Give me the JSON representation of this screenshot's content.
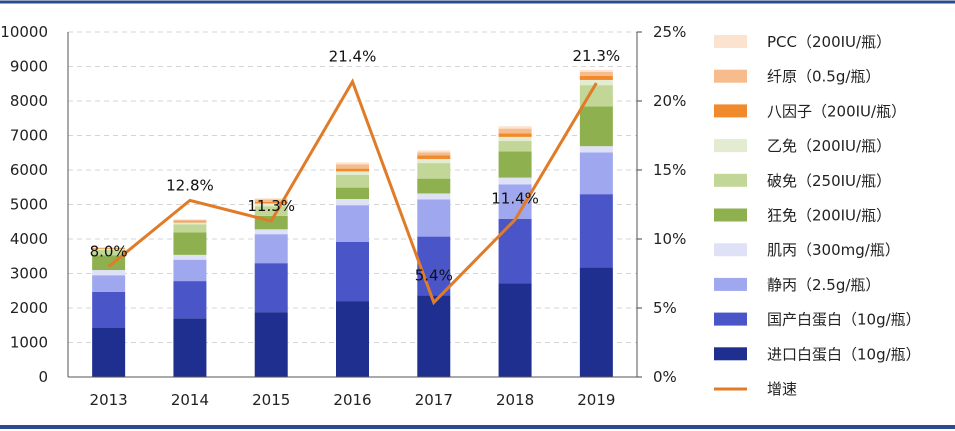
{
  "chart_data": {
    "type": "bar",
    "stacked": true,
    "categories": [
      "2013",
      "2014",
      "2015",
      "2016",
      "2017",
      "2018",
      "2019"
    ],
    "series": [
      {
        "name": "进口白蛋白（10g/瓶）",
        "color": "#1f2f8f",
        "values": [
          1420,
          1700,
          1880,
          2200,
          2370,
          2720,
          3180
        ]
      },
      {
        "name": "国产白蛋白（10g/瓶）",
        "color": "#4a55c8",
        "values": [
          1050,
          1080,
          1420,
          1720,
          1700,
          1860,
          2120
        ]
      },
      {
        "name": "静丙（2.5g/瓶）",
        "color": "#9fa7ee",
        "values": [
          480,
          620,
          840,
          1060,
          1080,
          1000,
          1210
        ]
      },
      {
        "name": "肌丙（300mg/瓶）",
        "color": "#dfe2f7",
        "values": [
          150,
          140,
          140,
          180,
          170,
          200,
          180
        ]
      },
      {
        "name": "狂免（200IU/瓶）",
        "color": "#8fb04f",
        "values": [
          430,
          650,
          390,
          330,
          430,
          760,
          1150
        ]
      },
      {
        "name": "破免（250IU/瓶）",
        "color": "#c2d797",
        "values": [
          150,
          230,
          280,
          370,
          450,
          300,
          620
        ]
      },
      {
        "name": "乙免（200IU/瓶）",
        "color": "#e3ebd1",
        "values": [
          40,
          60,
          80,
          100,
          120,
          120,
          150
        ]
      },
      {
        "name": "八因子（200IU/瓶）",
        "color": "#f08a2c",
        "values": [
          20,
          30,
          50,
          80,
          100,
          100,
          120
        ]
      },
      {
        "name": "纤原（0.5g/瓶）",
        "color": "#f6bc8c",
        "values": [
          10,
          40,
          70,
          120,
          90,
          140,
          110
        ]
      },
      {
        "name": "PCC（200IU/瓶）",
        "color": "#fbe3d0",
        "values": [
          10,
          20,
          30,
          60,
          60,
          70,
          60
        ]
      }
    ],
    "line_series": {
      "name": "增速",
      "color": "#e07b28",
      "values": [
        8.0,
        12.8,
        11.3,
        21.4,
        5.4,
        11.4,
        21.3
      ],
      "labels": [
        "8.0%",
        "12.8%",
        "11.3%",
        "21.4%",
        "5.4%",
        "11.4%",
        "21.3%"
      ]
    },
    "y_left": {
      "min": 0,
      "max": 10000,
      "ticks": [
        "0",
        "1000",
        "2000",
        "3000",
        "4000",
        "5000",
        "6000",
        "7000",
        "8000",
        "9000",
        "10000"
      ]
    },
    "y_right": {
      "min": 0,
      "max": 25,
      "ticks": [
        "0%",
        "5%",
        "10%",
        "15%",
        "20%",
        "25%"
      ]
    },
    "grid": true,
    "legend_position": "right"
  }
}
